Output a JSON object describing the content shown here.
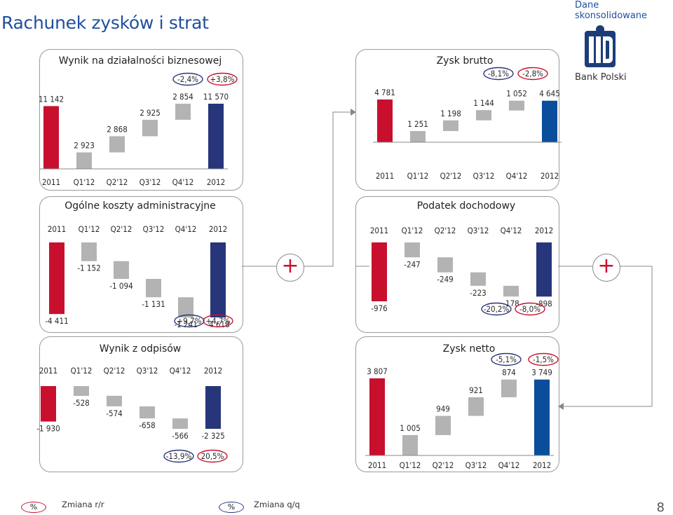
{
  "header": {
    "title": "Rachunek zysków i strat",
    "subtitle": "Dane skonsolidowane",
    "logo_text": "Bank Polski"
  },
  "chart_data": [
    {
      "type": "bar",
      "title": "Wynik na działalności biznesowej",
      "categories": [
        "2011",
        "Q1'12",
        "Q2'12",
        "Q3'12",
        "Q4'12",
        "2012"
      ],
      "values": [
        11142,
        2923,
        2868,
        2925,
        2854,
        11570
      ],
      "value_labels": [
        "11 142",
        "2 923",
        "2 868",
        "2 925",
        "2 854",
        "11 570"
      ],
      "changes": {
        "yoy": "+3,8%",
        "qoq": "-2,4%"
      },
      "colors": {
        "start": "#c8102e",
        "end": "#27367a",
        "step": "#b3b3b3"
      }
    },
    {
      "type": "bar",
      "title": "Zysk brutto",
      "categories": [
        "2011",
        "Q1'12",
        "Q2'12",
        "Q3'12",
        "Q4'12",
        "2012"
      ],
      "values": [
        4781,
        1251,
        1198,
        1144,
        1052,
        4645
      ],
      "value_labels": [
        "4 781",
        "1 251",
        "1 198",
        "1 144",
        "1 052",
        "4 645"
      ],
      "changes": {
        "yoy": "-2,8%",
        "qoq": "-8,1%"
      },
      "colors": {
        "start": "#c8102e",
        "end": "#0a4d9c",
        "step": "#b3b3b3"
      }
    },
    {
      "type": "bar",
      "title": "Ogólne koszty administracyjne",
      "categories": [
        "2011",
        "Q1'12",
        "Q2'12",
        "Q3'12",
        "Q4'12",
        "2012"
      ],
      "values": [
        -4411,
        -1152,
        -1094,
        -1131,
        -1241,
        -4618
      ],
      "value_labels": [
        "-4 411",
        "-1 152",
        "-1 094",
        "-1 131",
        "-1 241",
        "-4 618"
      ],
      "changes": {
        "yoy": "+4,7%",
        "qoq": "+9,7%"
      },
      "colors": {
        "start": "#c8102e",
        "end": "#27367a",
        "step": "#b3b3b3"
      }
    },
    {
      "type": "bar",
      "title": "Podatek dochodowy",
      "categories": [
        "2011",
        "Q1'12",
        "Q2'12",
        "Q3'12",
        "Q4'12",
        "2012"
      ],
      "values": [
        -976,
        -247,
        -249,
        -223,
        -178,
        -898
      ],
      "value_labels": [
        "-976",
        "-247",
        "-249",
        "-223",
        "-178",
        "-898"
      ],
      "changes": {
        "yoy": "-8,0%",
        "qoq": "-20,2%"
      },
      "colors": {
        "start": "#c8102e",
        "end": "#27367a",
        "step": "#b3b3b3"
      }
    },
    {
      "type": "bar",
      "title": "Wynik z odpisów",
      "categories": [
        "2011",
        "Q1'12",
        "Q2'12",
        "Q3'12",
        "Q4'12",
        "2012"
      ],
      "values": [
        -1930,
        -528,
        -574,
        -658,
        -566,
        -2325
      ],
      "value_labels": [
        "-1 930",
        "-528",
        "-574",
        "-658",
        "-566",
        "-2 325"
      ],
      "changes": {
        "yoy": "20,5%",
        "qoq": "-13,9%"
      },
      "colors": {
        "start": "#c8102e",
        "end": "#27367a",
        "step": "#b3b3b3"
      }
    },
    {
      "type": "bar",
      "title": "Zysk netto",
      "categories": [
        "2011",
        "Q1'12",
        "Q2'12",
        "Q3'12",
        "Q4'12",
        "2012"
      ],
      "values": [
        3807,
        1005,
        949,
        921,
        874,
        3749
      ],
      "value_labels": [
        "3 807",
        "1 005",
        "949",
        "921",
        "874",
        "3 749"
      ],
      "changes": {
        "yoy": "-1,5%",
        "qoq": "-5,1%"
      },
      "colors": {
        "start": "#c8102e",
        "end": "#0a4d9c",
        "step": "#b3b3b3"
      }
    }
  ],
  "legend": {
    "yoy_symbol": "%",
    "yoy_label": "Zmiana r/r",
    "qoq_symbol": "%",
    "qoq_label": "Zmiana q/q",
    "yoy_color": "#c8102e",
    "qoq_color": "#27367a"
  },
  "page_number": "8"
}
